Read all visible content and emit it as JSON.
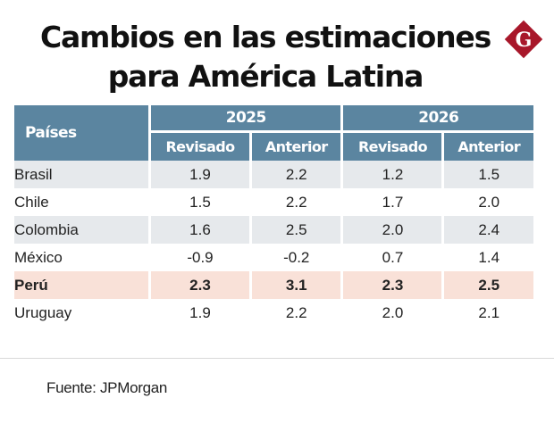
{
  "title": {
    "line1": "Cambios en las estimaciones",
    "line2": "para América Latina"
  },
  "logo": {
    "icon": "g-diamond-logo-icon",
    "letter": "G",
    "color": "#a8172a"
  },
  "table": {
    "header_color": "#5b85a0",
    "country_header": "Países",
    "years": [
      "2025",
      "2026"
    ],
    "subheaders": [
      "Revisado",
      "Anterior",
      "Revisado",
      "Anterior"
    ],
    "rows": [
      {
        "country": "Brasil",
        "values": [
          "1.9",
          "2.2",
          "1.2",
          "1.5"
        ],
        "highlight": false
      },
      {
        "country": "Chile",
        "values": [
          "1.5",
          "2.2",
          "1.7",
          "2.0"
        ],
        "highlight": false
      },
      {
        "country": "Colombia",
        "values": [
          "1.6",
          "2.5",
          "2.0",
          "2.4"
        ],
        "highlight": false
      },
      {
        "country": "México",
        "values": [
          "-0.9",
          "-0.2",
          "0.7",
          "1.4"
        ],
        "highlight": false
      },
      {
        "country": "Perú",
        "values": [
          "2.3",
          "3.1",
          "2.3",
          "2.5"
        ],
        "highlight": true
      },
      {
        "country": "Uruguay",
        "values": [
          "1.9",
          "2.2",
          "2.0",
          "2.1"
        ],
        "highlight": false
      }
    ]
  },
  "source": "Fuente: JPMorgan"
}
